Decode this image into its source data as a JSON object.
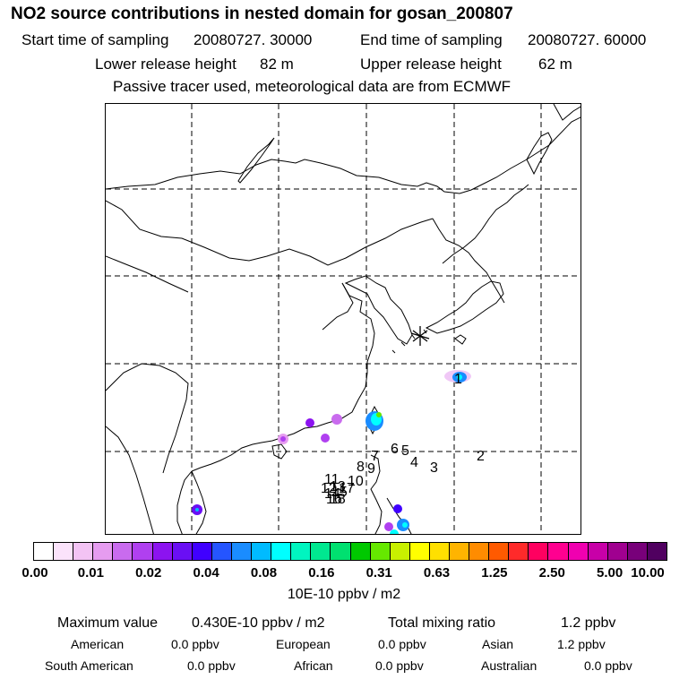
{
  "title": "NO2 source contributions in nested domain for gosan_200807",
  "sampling": {
    "start_label": "Start time of sampling",
    "start_value": "20080727. 30000",
    "end_label": "End time of sampling",
    "end_value": "20080727. 60000"
  },
  "release": {
    "lower_label": "Lower release height",
    "lower_value": "82 m",
    "upper_label": "Upper release height",
    "upper_value": "62 m"
  },
  "note": "Passive tracer used, meteorological data are from ECMWF",
  "map": {
    "receptor_marker": "asterisk",
    "trajectory_labels": [
      "1",
      "2",
      "3",
      "4",
      "5",
      "6",
      "7",
      "8",
      "9",
      "10",
      "11",
      "12",
      "13",
      "14",
      "15",
      "16",
      "17",
      "18"
    ]
  },
  "colorbar": {
    "colors": [
      "#ffffff",
      "#fbe3fb",
      "#f3c3f4",
      "#e69cf0",
      "#c96bee",
      "#b040f0",
      "#8c13f0",
      "#6a0ff4",
      "#4000ff",
      "#2555ff",
      "#1a8cff",
      "#00bbff",
      "#00ffff",
      "#00f5c0",
      "#00e890",
      "#00e070",
      "#00c800",
      "#66e800",
      "#c8f000",
      "#ffff00",
      "#ffe000",
      "#ffb400",
      "#ff8c00",
      "#ff5a00",
      "#ff2a2a",
      "#ff0060",
      "#ff0090",
      "#f000b0",
      "#c800a8",
      "#a00090",
      "#78007a",
      "#500060"
    ],
    "tick_labels": [
      "0.00",
      "0.01",
      "0.02",
      "0.04",
      "0.08",
      "0.16",
      "0.31",
      "0.63",
      "1.25",
      "2.50",
      "5.00",
      "10.00"
    ],
    "unit": "10E-10 ppbv / m2"
  },
  "summary": {
    "max_label": "Maximum value",
    "max_value": "0.430E-10 ppbv / m2",
    "total_label": "Total mixing ratio",
    "total_value": "1.2 ppbv"
  },
  "regions": [
    {
      "name": "American",
      "value": "0.0 ppbv"
    },
    {
      "name": "European",
      "value": "0.0 ppbv"
    },
    {
      "name": "Asian",
      "value": "1.2 ppbv"
    },
    {
      "name": "South American",
      "value": "0.0 ppbv"
    },
    {
      "name": "African",
      "value": "0.0 ppbv"
    },
    {
      "name": "Australian",
      "value": "0.0 ppbv"
    }
  ]
}
